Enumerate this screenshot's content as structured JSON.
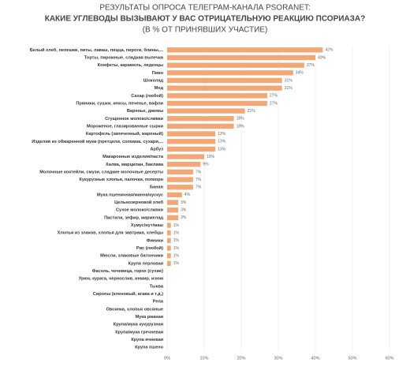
{
  "chart_data": {
    "type": "bar",
    "orientation": "horizontal",
    "title": "РЕЗУЛЬТАТЫ ОПРОСА ТЕЛЕГРАМ-КАНАЛА PSORANET:",
    "subtitle": "КАКИЕ УГЛЕВОДЫ ВЫЗЫВАЮТ У ВАС ОТРИЦАТЕЛЬНУЮ РЕАКЦИЮ ПСОРИАЗА?",
    "note": "(В % ОТ ПРИНЯВШИХ УЧАСТИЕ)",
    "categories": [
      "Белый хлеб, лепешки, питы, лаваш, пицца, пироги, блины,...",
      "Торты, пирожные, сладкая выпечка",
      "Конфеты, карамель, леденцы",
      "Пиво",
      "Шоколад",
      "Мед",
      "Сахар (любой)",
      "Пряники, сушки, кексы, печенье, вафли",
      "Варенье, джемы",
      "Сгущенное молоко/сливки",
      "Мороженое, глазированные сырки",
      "Картофель (запеченный, жареный)",
      "Изделия из обжаренной муки (претцели, соломка, сухари,...",
      "Арбуз",
      "Макаронные изделия/паста",
      "Халва, марципан, баклава",
      "Молочные коктейли, смузи, сладкие молочные десерты",
      "Кукурузные хлопья, палочки, попкорн",
      "Банан",
      "Мука пшеничная/манна/кускус",
      "Цельнозерновой хлеб",
      "Сухое молоко/сливки",
      "Пастила, зефир, мармелад",
      "Хумус/нут/маш",
      "Хлопья из злаков, хлопья для завтрака, хлебцы",
      "Финики",
      "Рис (любой)",
      "Мюсли, злаковые батончики",
      "Крупа перловая",
      "Фасоль, чечевица, горох (сухие)",
      "Урюк, курага, чернослив, инжир, изюм",
      "Тыква",
      "Сиропы (кленовый, агава и т.д.)",
      "Репа",
      "Овсянка, хлопья овсяные",
      "Мука ржаная",
      "Крупа/мука кукурузная",
      "Крупа/мука гречневая",
      "Крупа ячневая",
      "Крупа пшено"
    ],
    "values": [
      42,
      40,
      37,
      34,
      31,
      31,
      27,
      27,
      21,
      18,
      18,
      13,
      13,
      13,
      10,
      9,
      7,
      7,
      7,
      4,
      3,
      3,
      3,
      1,
      1,
      1,
      1,
      1,
      1,
      0,
      0,
      0,
      0,
      0,
      0,
      0,
      0,
      0,
      0,
      0
    ],
    "value_labels": [
      "42%",
      "40%",
      "37%",
      "34%",
      "31%",
      "31%",
      "27%",
      "27%",
      "21%",
      "18%",
      "18%",
      "13%",
      "13%",
      "13%",
      "10%",
      "9%",
      "7%",
      "7%",
      "7%",
      "4%",
      "3%",
      "3%",
      "3%",
      "1%",
      "1%",
      "1%",
      "1%",
      "1%",
      "1%",
      null,
      null,
      null,
      null,
      null,
      null,
      null,
      null,
      null,
      null,
      null
    ],
    "color": "#f2a876",
    "xlim": [
      0,
      60
    ],
    "xticks": [
      {
        "value": 0,
        "label": "0%"
      },
      {
        "value": 10,
        "label": "10%"
      },
      {
        "value": 20,
        "label": "20%"
      },
      {
        "value": 30,
        "label": "30%"
      },
      {
        "value": 40,
        "label": "40%"
      },
      {
        "value": 50,
        "label": "50%"
      },
      {
        "value": 60,
        "label": "60%"
      }
    ],
    "grid": true
  }
}
